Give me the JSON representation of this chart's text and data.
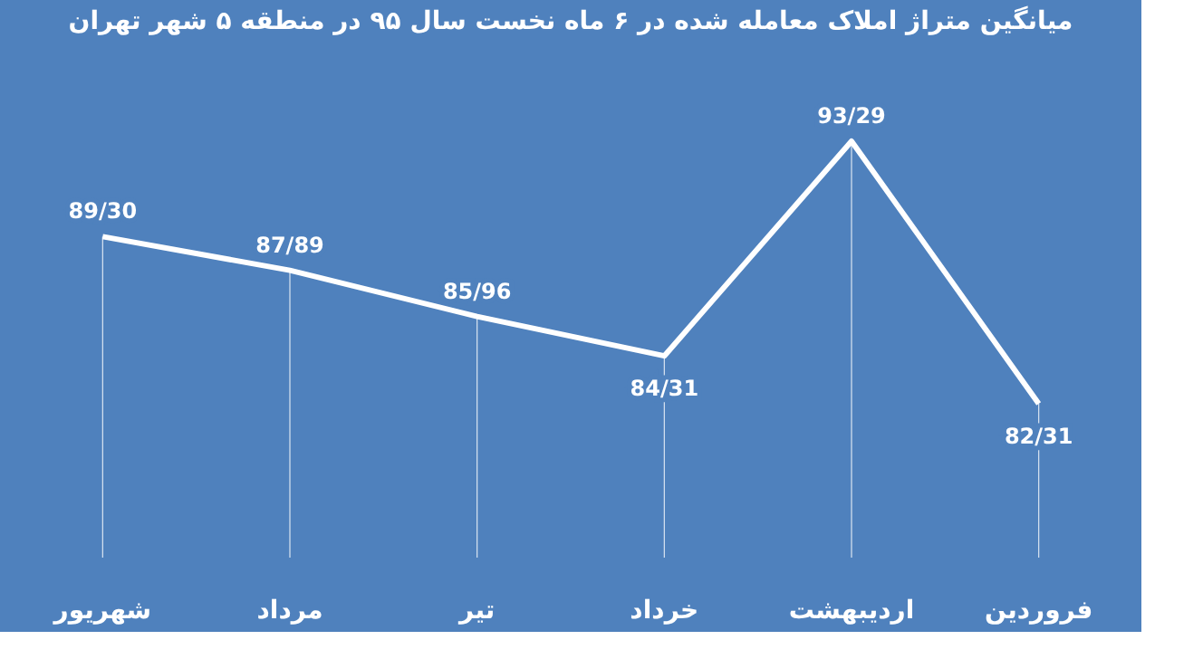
{
  "chart_data": {
    "type": "line",
    "title": "میانگین متراژ املاک معامله شده در ۶ ماه نخست سال ۹۵ در منطقه ۵ شهر تهران",
    "categories": [
      "شهریور",
      "مرداد",
      "تیر",
      "خرداد",
      "اردیبهشت",
      "فروردین"
    ],
    "series": [
      {
        "color": "#ffffff",
        "values": [
          89.3,
          87.89,
          85.96,
          84.31,
          93.29,
          82.31
        ],
        "value_labels": [
          "89/30",
          "87/89",
          "85/96",
          "84/31",
          "93/29",
          "82/31"
        ]
      }
    ],
    "grid": "x",
    "marker": "none",
    "line_style": "solid"
  }
}
